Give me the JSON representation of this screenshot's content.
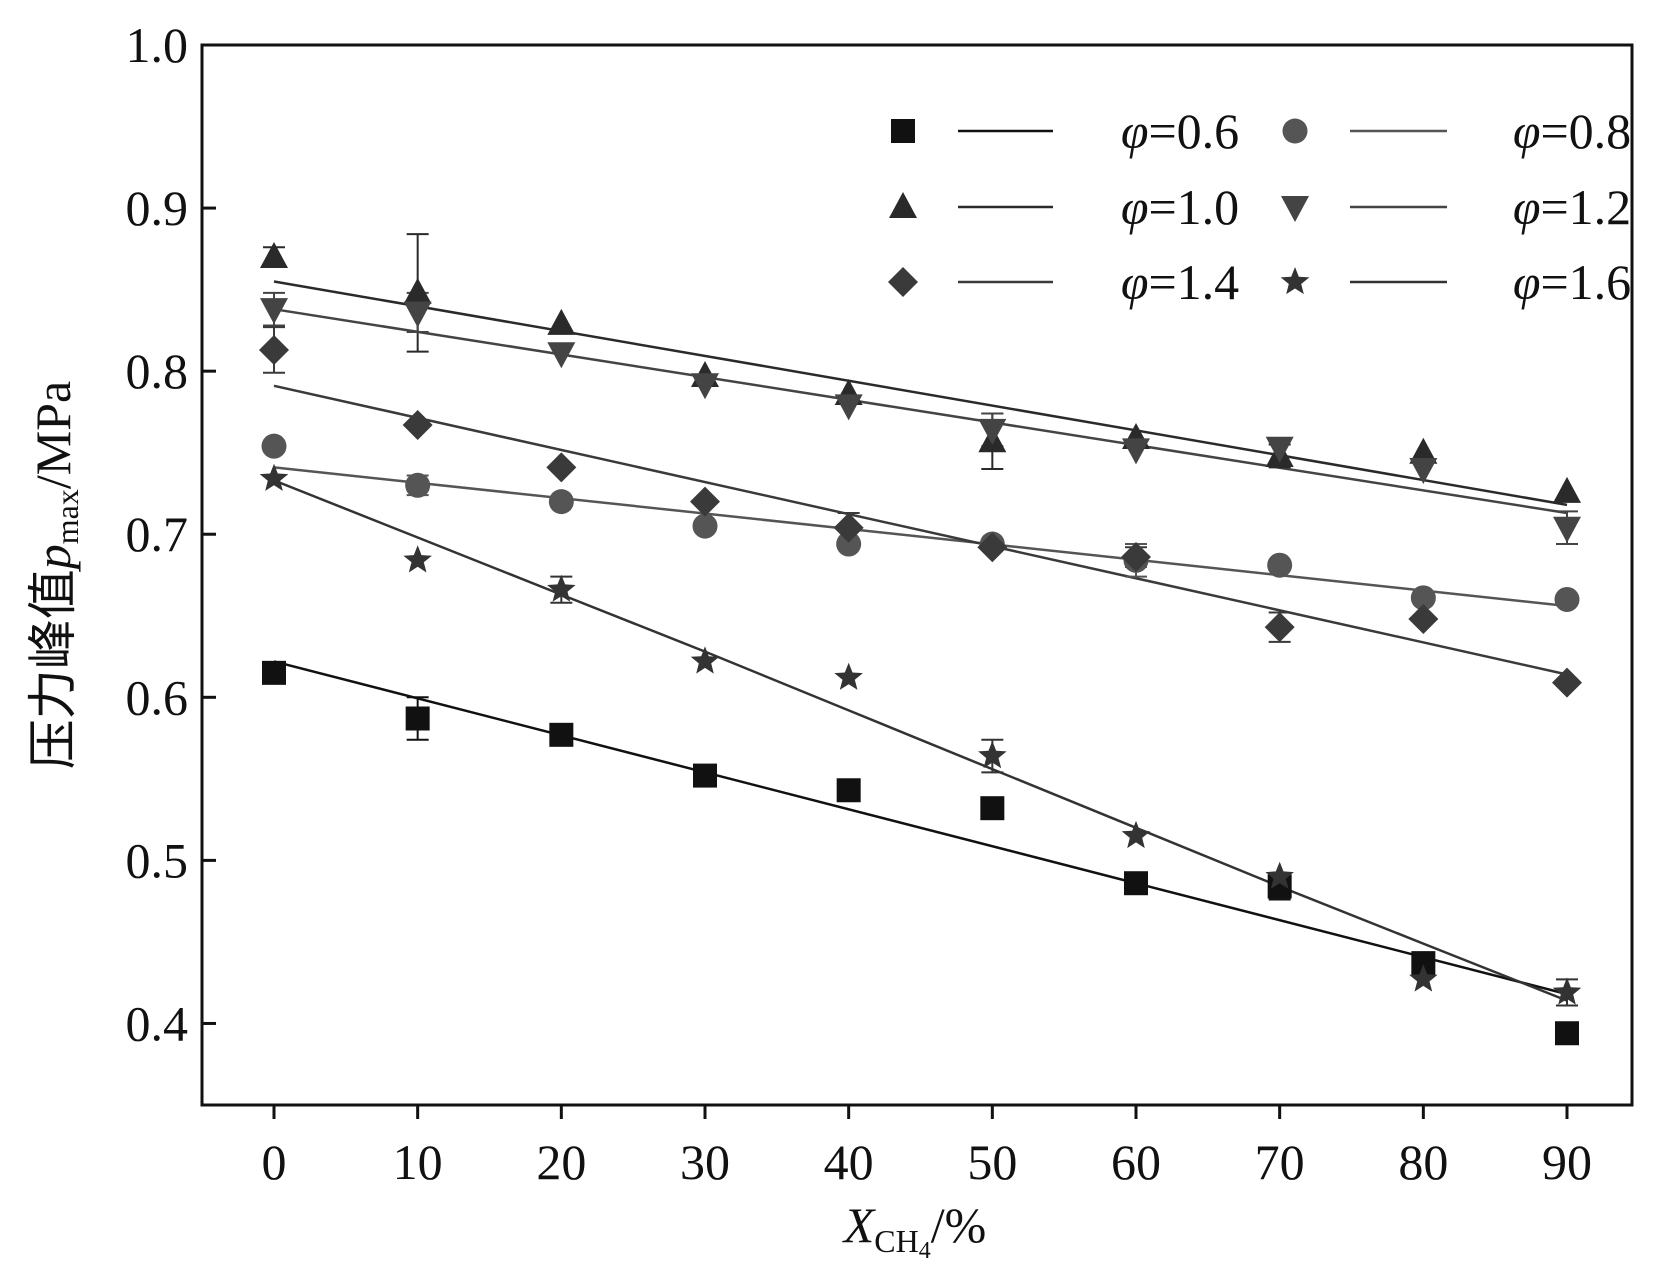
{
  "chart_data": {
    "type": "scatter",
    "title": "",
    "xlabel": {
      "main": "X",
      "sub": "CH",
      "sub2": "4",
      "unit": "/%"
    },
    "ylabel": {
      "prefix": "压力峰值",
      "var": "p",
      "sub": "max",
      "unit": "/MPa"
    },
    "xlim": [
      -5,
      95
    ],
    "ylim": [
      0.35,
      1.0
    ],
    "x_ticks": [
      0,
      10,
      20,
      30,
      40,
      50,
      60,
      70,
      80,
      90
    ],
    "x_tick_labels": [
      "0",
      "10",
      "20",
      "30",
      "40",
      "50",
      "60",
      "70",
      "80",
      "90"
    ],
    "y_ticks": [
      0.4,
      0.5,
      0.6,
      0.7,
      0.8,
      0.9,
      1.0
    ],
    "y_tick_labels": [
      "0.4",
      "0.5",
      "0.6",
      "0.7",
      "0.8",
      "0.9",
      "1.0"
    ],
    "legend_position": "top-right",
    "x": [
      0,
      10,
      20,
      30,
      40,
      50,
      60,
      70,
      80,
      90
    ],
    "series": [
      {
        "name": "φ=0.6",
        "var": "φ",
        "label": "=0.6",
        "marker": "square",
        "color": "#111111",
        "values": [
          0.615,
          0.587,
          0.577,
          0.552,
          0.543,
          0.532,
          0.486,
          0.484,
          0.437,
          0.394
        ],
        "errors": [
          0,
          0.013,
          0.005,
          0.004,
          0,
          0,
          0,
          0.008,
          0,
          0
        ],
        "fit": [
          0.622,
          0.418
        ]
      },
      {
        "name": "φ=0.8",
        "var": "φ",
        "label": "=0.8",
        "marker": "circle",
        "color": "#555555",
        "values": [
          0.754,
          0.73,
          0.72,
          0.705,
          0.694,
          0.694,
          0.684,
          0.681,
          0.661,
          0.66
        ],
        "errors": [
          0,
          0.006,
          0,
          0,
          0,
          0,
          0.01,
          0,
          0,
          0
        ],
        "fit": [
          0.741,
          0.656
        ]
      },
      {
        "name": "φ=1.0",
        "var": "φ",
        "label": "=1.0",
        "marker": "triangle-up",
        "color": "#2a2a2a",
        "values": [
          0.87,
          0.848,
          0.829,
          0.797,
          0.786,
          0.757,
          0.759,
          0.748,
          0.75,
          0.726
        ],
        "errors": [
          0.006,
          0.036,
          0,
          0,
          0,
          0.017,
          0,
          0.007,
          0,
          0
        ],
        "fit": [
          0.855,
          0.718
        ]
      },
      {
        "name": "φ=1.2",
        "var": "φ",
        "label": "=1.2",
        "marker": "triangle-down",
        "color": "#444444",
        "values": [
          0.838,
          0.836,
          0.811,
          0.792,
          0.779,
          0.764,
          0.752,
          0.753,
          0.74,
          0.704
        ],
        "errors": [
          0.01,
          0.012,
          0,
          0,
          0,
          0.01,
          0,
          0,
          0,
          0.01
        ],
        "fit": [
          0.838,
          0.713
        ]
      },
      {
        "name": "φ=1.4",
        "var": "φ",
        "label": "=1.4",
        "marker": "diamond",
        "color": "#3a3a3a",
        "values": [
          0.813,
          0.767,
          0.741,
          0.72,
          0.704,
          0.692,
          0.686,
          0.643,
          0.648,
          0.609
        ],
        "errors": [
          0.014,
          0,
          0,
          0,
          0.009,
          0,
          0.006,
          0.009,
          0,
          0
        ],
        "fit": [
          0.791,
          0.614
        ]
      },
      {
        "name": "φ=1.6",
        "var": "φ",
        "label": "=1.6",
        "marker": "star",
        "color": "#333333",
        "values": [
          0.734,
          0.684,
          0.666,
          0.622,
          0.612,
          0.564,
          0.515,
          0.49,
          0.427,
          0.419
        ],
        "errors": [
          0,
          0,
          0.008,
          0,
          0,
          0.01,
          0,
          0,
          0,
          0.008
        ],
        "fit_curve": [
          0.733,
          0.698,
          0.663,
          0.628,
          0.592,
          0.556,
          0.52,
          0.484,
          0.449,
          0.414
        ]
      }
    ]
  }
}
